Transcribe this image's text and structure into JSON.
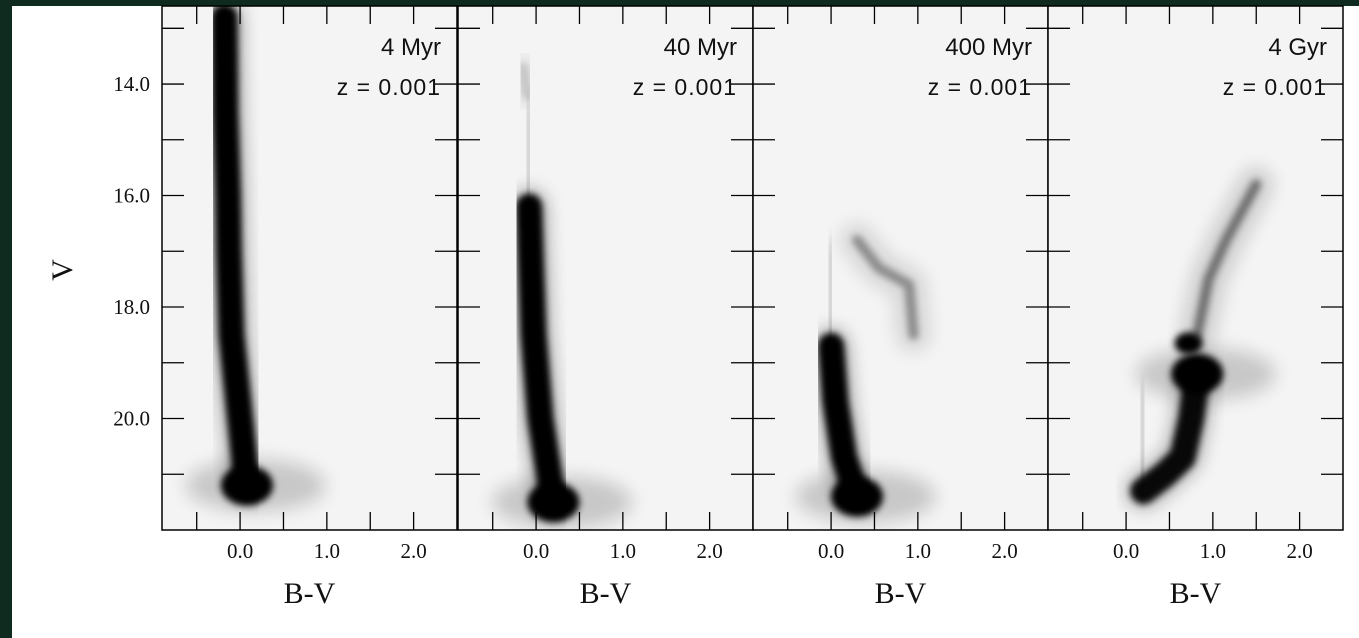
{
  "chart_data": {
    "type": "heatmap",
    "shared_ylabel": "V",
    "panels": [
      {
        "title": "4 Myr",
        "subtitle": "z = 0.001",
        "xlabel": "B-V",
        "xticks": [
          "0.0",
          "1.0",
          "2.0"
        ],
        "yticks": [
          "14.0",
          "16.0",
          "18.0",
          "20.0"
        ],
        "xlim": [
          -0.9,
          2.5
        ],
        "ylim": [
          22.0,
          12.6
        ],
        "density_ridges": [
          {
            "points": [
              [
                -0.18,
                12.8
              ],
              [
                -0.17,
                14.5
              ],
              [
                -0.14,
                16.0
              ],
              [
                -0.13,
                17.0
              ],
              [
                -0.1,
                18.5
              ],
              [
                0.0,
                20.0
              ],
              [
                0.08,
                21.2
              ]
            ],
            "level": 1.0
          }
        ]
      },
      {
        "title": "40 Myr",
        "subtitle": "z = 0.001",
        "xlabel": "B-V",
        "xticks": [
          "0.0",
          "1.0",
          "2.0"
        ],
        "yticks": [
          "14.0",
          "16.0",
          "18.0",
          "20.0"
        ],
        "xlim": [
          -0.9,
          2.5
        ],
        "ylim": [
          22.0,
          12.6
        ],
        "density_ridges": [
          {
            "points": [
              [
                -0.08,
                16.2
              ],
              [
                -0.06,
                17.2
              ],
              [
                -0.03,
                18.5
              ],
              [
                0.05,
                20.0
              ],
              [
                0.2,
                21.5
              ]
            ],
            "level": 1.0
          },
          {
            "points": [
              [
                -0.15,
                13.7
              ],
              [
                -0.1,
                14.2
              ]
            ],
            "level": 0.15
          }
        ]
      },
      {
        "title": "400 Myr",
        "subtitle": "z = 0.001",
        "xlabel": "B-V",
        "xticks": [
          "0.0",
          "1.0",
          "2.0"
        ],
        "yticks": [
          "14.0",
          "16.0",
          "18.0",
          "20.0"
        ],
        "xlim": [
          -0.9,
          2.5
        ],
        "ylim": [
          22.0,
          12.6
        ],
        "density_ridges": [
          {
            "points": [
              [
                0.0,
                18.7
              ],
              [
                0.05,
                19.7
              ],
              [
                0.15,
                20.7
              ],
              [
                0.3,
                21.4
              ]
            ],
            "level": 1.0
          },
          {
            "points": [
              [
                0.3,
                16.8
              ],
              [
                0.55,
                17.3
              ],
              [
                0.9,
                17.6
              ],
              [
                0.95,
                18.5
              ]
            ],
            "level": 0.35
          }
        ]
      },
      {
        "title": "4 Gyr",
        "subtitle": "z = 0.001",
        "xlabel": "B-V",
        "xticks": [
          "0.0",
          "1.0",
          "2.0"
        ],
        "yticks": [
          "14.0",
          "16.0",
          "18.0",
          "20.0"
        ],
        "xlim": [
          -0.9,
          2.5
        ],
        "ylim": [
          22.0,
          12.6
        ],
        "density_ridges": [
          {
            "points": [
              [
                0.2,
                21.3
              ],
              [
                0.45,
                21.0
              ],
              [
                0.65,
                20.7
              ],
              [
                0.75,
                20.0
              ],
              [
                0.82,
                19.2
              ]
            ],
            "level": 0.95
          },
          {
            "points": [
              [
                0.82,
                18.5
              ],
              [
                0.95,
                17.5
              ],
              [
                1.15,
                16.8
              ],
              [
                1.5,
                15.8
              ]
            ],
            "level": 0.45
          }
        ],
        "blobs": [
          {
            "x": 0.72,
            "y": 18.65,
            "level": 1.0
          }
        ]
      }
    ]
  }
}
